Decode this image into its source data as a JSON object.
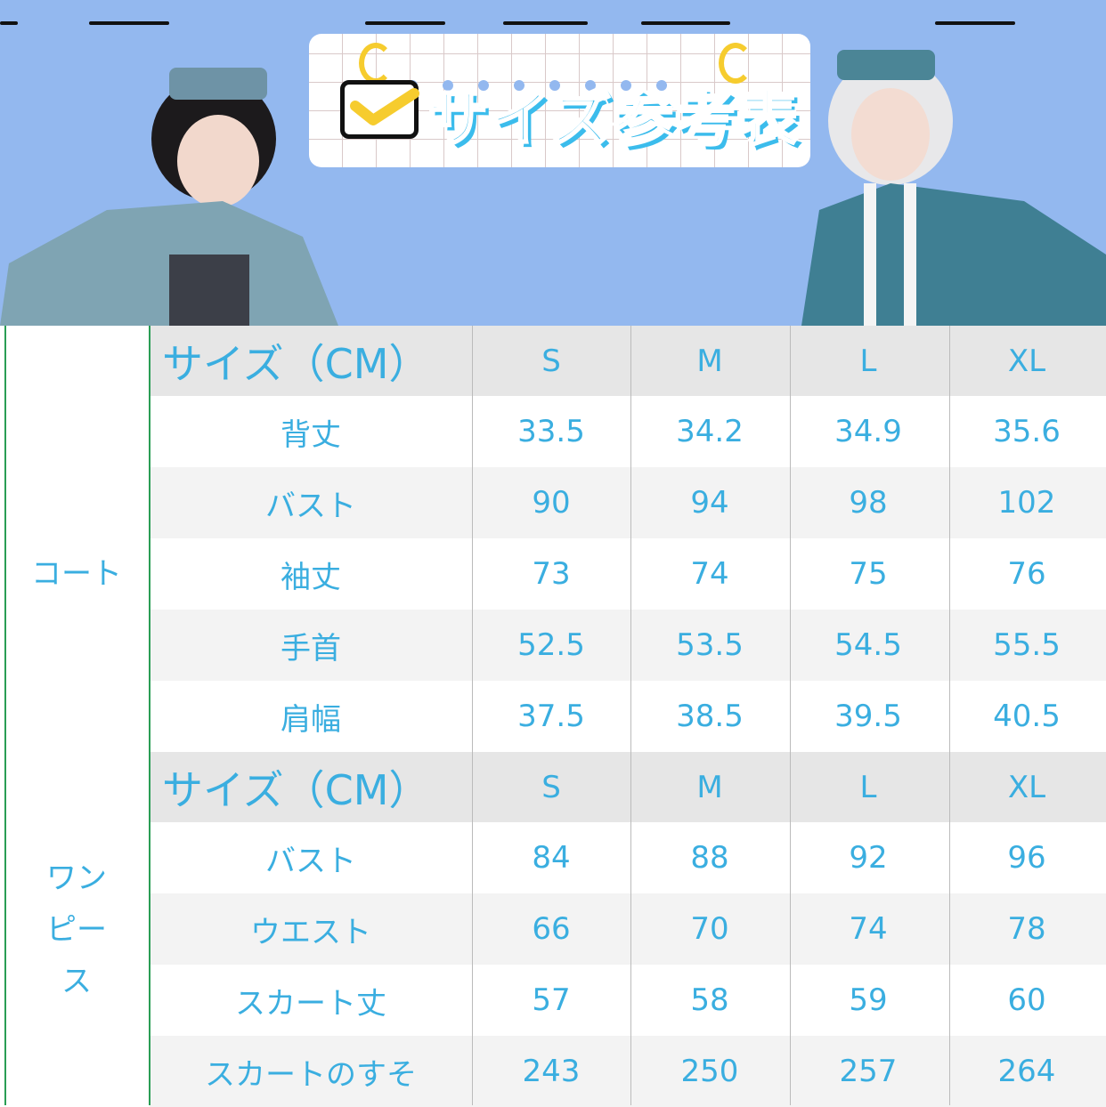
{
  "banner": {
    "title": "サイズ参考表",
    "icon": "checkbox-icon",
    "background": "#93b8ef"
  },
  "table": {
    "sections": [
      {
        "category": "コート",
        "header": {
          "label": "サイズ（CM）",
          "sizes": [
            "S",
            "M",
            "L",
            "XL"
          ]
        },
        "rows": [
          {
            "label": "背丈",
            "values": [
              "33.5",
              "34.2",
              "34.9",
              "35.6"
            ]
          },
          {
            "label": "バスト",
            "values": [
              "90",
              "94",
              "98",
              "102"
            ]
          },
          {
            "label": "袖丈",
            "values": [
              "73",
              "74",
              "75",
              "76"
            ]
          },
          {
            "label": "手首",
            "values": [
              "52.5",
              "53.5",
              "54.5",
              "55.5"
            ]
          },
          {
            "label": "肩幅",
            "values": [
              "37.5",
              "38.5",
              "39.5",
              "40.5"
            ]
          }
        ]
      },
      {
        "category": "ワンピース",
        "header": {
          "label": "サイズ（CM）",
          "sizes": [
            "S",
            "M",
            "L",
            "XL"
          ]
        },
        "rows": [
          {
            "label": "バスト",
            "values": [
              "84",
              "88",
              "92",
              "96"
            ]
          },
          {
            "label": "ウエスト",
            "values": [
              "66",
              "70",
              "74",
              "78"
            ]
          },
          {
            "label": "スカート丈",
            "values": [
              "57",
              "58",
              "59",
              "60"
            ]
          },
          {
            "label": "スカートのすそ",
            "values": [
              "243",
              "250",
              "257",
              "264"
            ]
          }
        ]
      }
    ],
    "text_color": "#3aaee0"
  }
}
